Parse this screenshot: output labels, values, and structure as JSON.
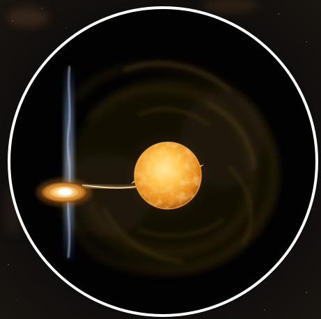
{
  "scene": {
    "subject": "binary-star-mass-transfer-illustration",
    "colors": {
      "space_background": "#0b0a0c",
      "circle_border": "#ffffff",
      "disk_interior": "#000000",
      "star_core": "#ffd166",
      "star_mid": "#f5a623",
      "star_edge": "#c46a12",
      "accretion_disk_center": "#fff6d8",
      "accretion_disk_edge": "#d98a2a",
      "nebula_shell": "#9a7a2e",
      "jet": "#8fb4ff"
    }
  }
}
